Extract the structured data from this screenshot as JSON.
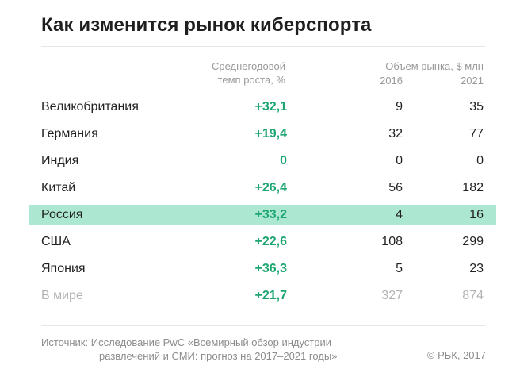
{
  "title": "Как изменится рынок киберспорта",
  "headers": {
    "growth_line1": "Среднегодовой",
    "growth_line2": "темп роста, %",
    "market": "Объем рынка, $ млн",
    "year1": "2016",
    "year2": "2021"
  },
  "chart_data": {
    "type": "table",
    "title": "Как изменится рынок киберспорта",
    "columns": [
      "",
      "Среднегодовой темп роста, %",
      "2016",
      "2021"
    ],
    "highlighted_row": "Россия",
    "rows": [
      {
        "country": "Великобритания",
        "growth": "+32,1",
        "v2016": "9",
        "v2021": "35"
      },
      {
        "country": "Германия",
        "growth": "+19,4",
        "v2016": "32",
        "v2021": "77"
      },
      {
        "country": "Индия",
        "growth": "0",
        "v2016": "0",
        "v2021": "0"
      },
      {
        "country": "Китай",
        "growth": "+26,4",
        "v2016": "56",
        "v2021": "182"
      },
      {
        "country": "Россия",
        "growth": "+33,2",
        "v2016": "4",
        "v2021": "16"
      },
      {
        "country": "США",
        "growth": "+22,6",
        "v2016": "108",
        "v2021": "299"
      },
      {
        "country": "Япония",
        "growth": "+36,3",
        "v2016": "5",
        "v2021": "23"
      },
      {
        "country": "В мире",
        "growth": "+21,7",
        "v2016": "327",
        "v2021": "874"
      }
    ]
  },
  "colors": {
    "growth": "#1ea672",
    "highlight": "#ace7d2",
    "muted": "#b3b3b3"
  },
  "footer": {
    "source_line1": "Источник: Исследование PwC «Всемирный обзор индустрии",
    "source_line2": "развлечений и СМИ: прогноз на 2017–2021 годы»",
    "copyright": "© РБК, 2017"
  }
}
